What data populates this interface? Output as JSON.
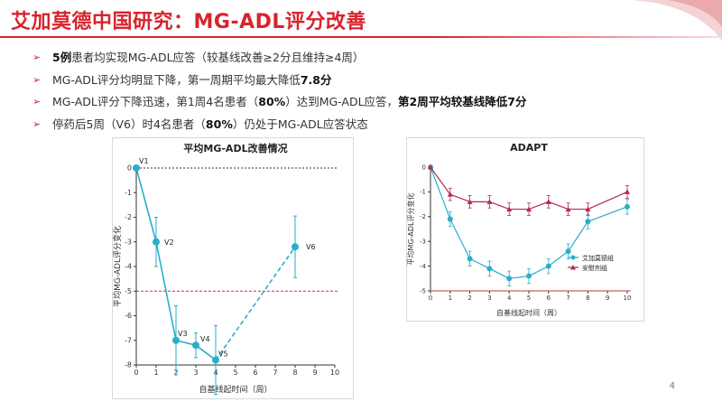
{
  "slide": {
    "title": "艾加莫德中国研究：MG-ADL评分改善",
    "page_number": "4",
    "accent_color": "#d9232d",
    "bullets": [
      {
        "text": "5例患者均实现MG-ADL应答（较基线改善≥2分且维持≥4周）",
        "bold_prefix": "5例",
        "bold_suffix": ""
      },
      {
        "text": "MG-ADL评分均明显下降，第一周期平均最大降低7.8分",
        "bold_prefix": "",
        "bold_suffix": "7.8分"
      },
      {
        "text": "MG-ADL评分下降迅速，第1周4名患者（80%）达到MG-ADL应答，第2周平均较基线降低7分",
        "bold_prefix": "",
        "bold_suffix": ""
      },
      {
        "text": "停药后5周（V6）时4名患者（80%）仍处于MG-ADL应答状态",
        "bold_prefix": "",
        "bold_suffix": ""
      }
    ],
    "bullet_parts": [
      [
        {
          "t": "5例",
          "b": true
        },
        {
          "t": "患者均实现MG-ADL应答（较基线改善≥2分且维持≥4周）",
          "b": false
        }
      ],
      [
        {
          "t": "MG-ADL评分均明显下降，第一周期平均最大降低",
          "b": false
        },
        {
          "t": "7.8分",
          "b": true
        }
      ],
      [
        {
          "t": "MG-ADL评分下降迅速，第1周4名患者（",
          "b": false
        },
        {
          "t": "80%",
          "b": true
        },
        {
          "t": "）达到MG-ADL应答，",
          "b": false
        },
        {
          "t": "第2周平均较基线降低7分",
          "b": true
        }
      ],
      [
        {
          "t": "停药后5周（V6）时4名患者（",
          "b": false
        },
        {
          "t": "80%",
          "b": true
        },
        {
          "t": "）仍处于MG-ADL应答状态",
          "b": false
        }
      ]
    ],
    "bullet_marker": "➢"
  },
  "chart_data": [
    {
      "type": "line",
      "title": "平均MG-ADL改善情况",
      "xlabel": "自基线起时间（周）",
      "ylabel": "平均MG-ADL评分变化",
      "xlim": [
        0,
        10
      ],
      "ylim": [
        -8,
        0
      ],
      "xticks": [
        0,
        1,
        2,
        3,
        4,
        5,
        6,
        7,
        8,
        9,
        10
      ],
      "yticks": [
        0,
        -1,
        -2,
        -3,
        -4,
        -5,
        -6,
        -7,
        -8
      ],
      "reference_lines": [
        {
          "y": 0,
          "style": "dotted",
          "color": "#333333"
        },
        {
          "y": -5,
          "style": "dashed",
          "color": "#c0392b"
        }
      ],
      "series": [
        {
          "color": "#29aecb",
          "points": [
            {
              "x": 0,
              "y": 0,
              "label": "V1",
              "err": 0
            },
            {
              "x": 1,
              "y": -3,
              "label": "V2",
              "err": 1
            },
            {
              "x": 2,
              "y": -7,
              "label": "V3",
              "err": 1.4
            },
            {
              "x": 3,
              "y": -7.2,
              "label": "V4",
              "err": 0.5
            },
            {
              "x": 4,
              "y": -7.8,
              "label": "V5",
              "err": 1.4
            },
            {
              "x": 8,
              "y": -3.2,
              "label": "V6",
              "err": 1.25
            }
          ],
          "dashed_segment_from_index": 4
        }
      ],
      "grid": false
    },
    {
      "type": "line",
      "title": "ADAPT",
      "xlabel": "自基线起时间（周）",
      "ylabel": "平均MG-ADL评分变化",
      "xlim": [
        0,
        10
      ],
      "ylim": [
        -5,
        0
      ],
      "xticks": [
        0,
        1,
        2,
        3,
        4,
        5,
        6,
        7,
        8,
        9,
        10
      ],
      "yticks": [
        0,
        -1,
        -2,
        -3,
        -4,
        -5
      ],
      "reference_lines": [
        {
          "y": -5,
          "style": "solid",
          "color": "#c0392b"
        }
      ],
      "legend_position": "middle-right",
      "series": [
        {
          "name": "艾加莫德组",
          "color": "#29aecb",
          "marker": "circle",
          "x": [
            0,
            1,
            2,
            3,
            4,
            5,
            6,
            7,
            8,
            10
          ],
          "y": [
            0,
            -2.1,
            -3.7,
            -4.1,
            -4.5,
            -4.4,
            -4.0,
            -3.4,
            -2.2,
            -1.6
          ],
          "err": [
            0,
            0.3,
            0.3,
            0.3,
            0.3,
            0.3,
            0.3,
            0.3,
            0.3,
            0.3
          ]
        },
        {
          "name": "安慰剂组",
          "color": "#b5294e",
          "marker": "triangle",
          "x": [
            0,
            1,
            2,
            3,
            4,
            5,
            6,
            7,
            8,
            10
          ],
          "y": [
            0,
            -1.1,
            -1.4,
            -1.4,
            -1.7,
            -1.7,
            -1.4,
            -1.7,
            -1.7,
            -1.0
          ],
          "err": [
            0,
            0.25,
            0.25,
            0.25,
            0.25,
            0.25,
            0.25,
            0.25,
            0.25,
            0.25
          ]
        }
      ],
      "grid": false
    }
  ]
}
